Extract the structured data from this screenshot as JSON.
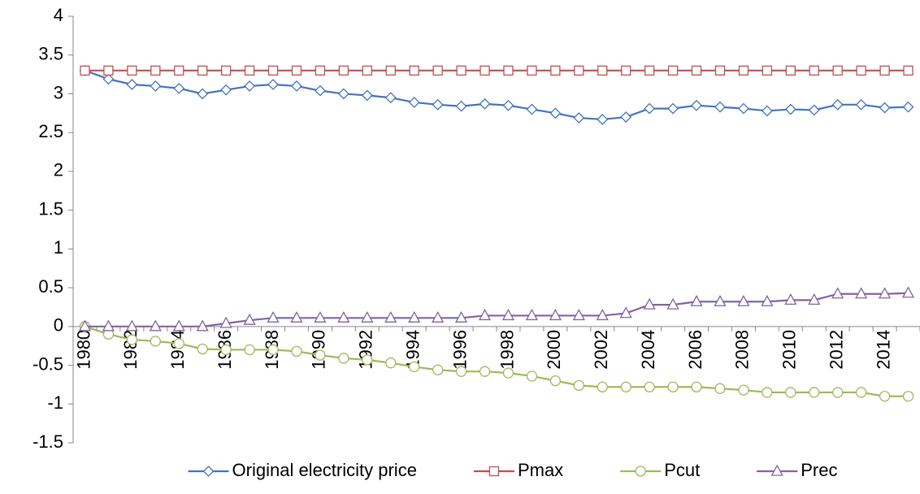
{
  "chart_data": {
    "type": "line",
    "categories": [
      "1980",
      null,
      "1982",
      null,
      "1984",
      null,
      "1986",
      null,
      "1988",
      null,
      "1990",
      null,
      "1992",
      null,
      "1994",
      null,
      "1996",
      null,
      "1998",
      null,
      "2000",
      null,
      "2002",
      null,
      "2004",
      null,
      "2006",
      null,
      "2008",
      null,
      "2010",
      null,
      "2012",
      null,
      "2014",
      null
    ],
    "ylim": [
      -1.5,
      4
    ],
    "yticks": [
      -1.5,
      -1,
      -0.5,
      0,
      0.5,
      1,
      1.5,
      2,
      2.5,
      3,
      3.5,
      4
    ],
    "grid": false,
    "legend": "bottom",
    "series": [
      {
        "name": "Original electricity price",
        "color": "#4472c4",
        "marker": "diamond",
        "values": [
          3.3,
          3.19,
          3.12,
          3.1,
          3.07,
          3.0,
          3.05,
          3.1,
          3.12,
          3.1,
          3.04,
          3.0,
          2.98,
          2.95,
          2.89,
          2.86,
          2.84,
          2.87,
          2.85,
          2.8,
          2.75,
          2.69,
          2.67,
          2.7,
          2.81,
          2.81,
          2.85,
          2.83,
          2.81,
          2.78,
          2.8,
          2.79,
          2.86,
          2.86,
          2.82,
          2.83
        ]
      },
      {
        "name": "Pmax",
        "color": "#c0504d",
        "marker": "square",
        "values": [
          3.3,
          3.3,
          3.3,
          3.3,
          3.3,
          3.3,
          3.3,
          3.3,
          3.3,
          3.3,
          3.3,
          3.3,
          3.3,
          3.3,
          3.3,
          3.3,
          3.3,
          3.3,
          3.3,
          3.3,
          3.3,
          3.3,
          3.3,
          3.3,
          3.3,
          3.3,
          3.3,
          3.3,
          3.3,
          3.3,
          3.3,
          3.3,
          3.3,
          3.3,
          3.3,
          3.3
        ]
      },
      {
        "name": "Pcut",
        "color": "#9bbb59",
        "marker": "circle",
        "values": [
          0,
          -0.1,
          -0.17,
          -0.19,
          -0.22,
          -0.29,
          -0.3,
          -0.3,
          -0.3,
          -0.32,
          -0.37,
          -0.41,
          -0.43,
          -0.47,
          -0.52,
          -0.56,
          -0.58,
          -0.58,
          -0.6,
          -0.64,
          -0.7,
          -0.76,
          -0.78,
          -0.78,
          -0.78,
          -0.78,
          -0.78,
          -0.8,
          -0.82,
          -0.85,
          -0.85,
          -0.85,
          -0.85,
          -0.85,
          -0.9,
          -0.9
        ]
      },
      {
        "name": "Prec",
        "color": "#8064a2",
        "marker": "triangle",
        "values": [
          0,
          0,
          0,
          0,
          0,
          0,
          0.04,
          0.08,
          0.11,
          0.11,
          0.11,
          0.11,
          0.11,
          0.11,
          0.11,
          0.11,
          0.11,
          0.14,
          0.14,
          0.14,
          0.14,
          0.14,
          0.14,
          0.17,
          0.28,
          0.28,
          0.32,
          0.32,
          0.32,
          0.32,
          0.34,
          0.34,
          0.42,
          0.42,
          0.42,
          0.43
        ]
      }
    ]
  }
}
